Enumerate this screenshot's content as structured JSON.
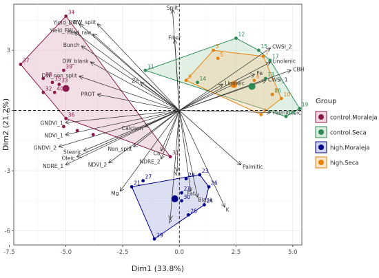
{
  "chart_data": {
    "type": "scatter",
    "title": "",
    "xlabel": "Dim1 (33.8%)",
    "ylabel": "Dim2 (21.2%)",
    "xlim": [
      -7.3,
      5.4
    ],
    "ylim": [
      -6.7,
      5.3
    ],
    "x_ticks": [
      -7.5,
      -5.0,
      -2.5,
      0.0,
      2.5,
      5.0
    ],
    "x_tick_labels": [
      "-7.5",
      "-5.0",
      "-2.5",
      "0.0",
      "2.5",
      "5.0"
    ],
    "y_ticks": [
      -6,
      -3,
      0,
      3
    ],
    "y_tick_labels": [
      "-6",
      "-3",
      "0",
      "3"
    ],
    "grid": true,
    "legend": {
      "title": "Group",
      "placement": "right"
    },
    "series": [
      {
        "name": "control.Moraleja",
        "color": "#8b1a4a",
        "fill": "#d9a3b8",
        "points": [
          {
            "id": "34",
            "x": -5.0,
            "y": 4.7
          },
          {
            "id": "37",
            "x": -7.0,
            "y": 2.3
          },
          {
            "id": "39",
            "x": -5.1,
            "y": 2.0
          },
          {
            "id": "38",
            "x": -6.0,
            "y": 1.6
          },
          {
            "id": "35",
            "x": -5.6,
            "y": 1.4
          },
          {
            "id": "40",
            "x": -5.5,
            "y": 0.9
          },
          {
            "id": "33",
            "x": -5.3,
            "y": 1.3
          },
          {
            "id": "32",
            "x": -6.0,
            "y": 0.9
          },
          {
            "id": "36",
            "x": -5.0,
            "y": -0.4
          },
          {
            "id": "31",
            "x": -0.4,
            "y": -2.3
          },
          {
            "id": "",
            "x": -4.5,
            "y": -1.0
          },
          {
            "id": "",
            "x": -3.8,
            "y": -1.2
          },
          {
            "id": "",
            "x": -5.1,
            "y": -0.8
          }
        ],
        "centroid": {
          "x": -5.0,
          "y": 1.1
        },
        "hull_order": [
          "34",
          "37",
          "36",
          "31"
        ]
      },
      {
        "name": "control.Seca",
        "color": "#2e8b57",
        "fill": "#a8d5b5",
        "points": [
          {
            "id": "12",
            "x": 2.5,
            "y": 3.6
          },
          {
            "id": "15",
            "x": 3.5,
            "y": 3.0
          },
          {
            "id": "17",
            "x": 4.0,
            "y": 2.5
          },
          {
            "id": "11",
            "x": -1.5,
            "y": 2.0
          },
          {
            "id": "13",
            "x": 3.8,
            "y": 1.6
          },
          {
            "id": "16",
            "x": 4.1,
            "y": 0.8
          },
          {
            "id": "19",
            "x": 5.3,
            "y": 0.1
          },
          {
            "id": "18",
            "x": 4.7,
            "y": -0.3
          },
          {
            "id": "14",
            "x": 0.8,
            "y": 1.4
          }
        ],
        "centroid": {
          "x": 3.2,
          "y": 1.2
        },
        "hull_order": [
          "12",
          "15",
          "17",
          "19",
          "18",
          "11"
        ]
      },
      {
        "name": "high.Moraleja",
        "color": "#00008b",
        "fill": "#9aa0d6",
        "points": [
          {
            "id": "21",
            "x": -2.1,
            "y": -3.8
          },
          {
            "id": "27",
            "x": -1.6,
            "y": -3.5
          },
          {
            "id": "23",
            "x": 0.9,
            "y": -3.2
          },
          {
            "id": "28",
            "x": 0.3,
            "y": -3.4
          },
          {
            "id": "22",
            "x": 0.1,
            "y": -4.1
          },
          {
            "id": "26",
            "x": 1.3,
            "y": -3.8
          },
          {
            "id": "30",
            "x": 0.1,
            "y": -4.5
          },
          {
            "id": "24",
            "x": 1.1,
            "y": -4.7
          },
          {
            "id": "25",
            "x": 0.4,
            "y": -5.2
          },
          {
            "id": "29",
            "x": -1.1,
            "y": -6.4
          }
        ],
        "centroid": {
          "x": -0.2,
          "y": -4.4
        },
        "hull_order": [
          "21",
          "23",
          "26",
          "24",
          "29"
        ]
      },
      {
        "name": "high.Seca",
        "color": "#e8820c",
        "fill": "#f5c78a",
        "points": [
          {
            "id": "3",
            "x": 1.5,
            "y": 3.0
          },
          {
            "id": "5",
            "x": 1.7,
            "y": 2.6
          },
          {
            "id": "1",
            "x": 3.7,
            "y": 2.7
          },
          {
            "id": "6",
            "x": 3.3,
            "y": 1.5
          },
          {
            "id": "9",
            "x": 0.3,
            "y": 1.5
          },
          {
            "id": "8",
            "x": 4.1,
            "y": 0.8
          },
          {
            "id": "10",
            "x": 4.5,
            "y": 0.6
          },
          {
            "id": "4",
            "x": 3.6,
            "y": -0.2
          }
        ],
        "centroid": {
          "x": 2.4,
          "y": 1.3
        },
        "hull_order": [
          "3",
          "1",
          "10",
          "4",
          "9"
        ]
      }
    ],
    "variables": [
      {
        "name": "Split",
        "x": -0.3,
        "y": 5.0
      },
      {
        "name": "Fiber",
        "x": -0.2,
        "y": 3.5
      },
      {
        "name": "CWSI_2",
        "x": 4.0,
        "y": 3.1
      },
      {
        "name": "Linolenic",
        "x": 4.0,
        "y": 2.4
      },
      {
        "name": "CBH",
        "x": 4.9,
        "y": 2.0
      },
      {
        "name": "Fe",
        "x": 3.3,
        "y": 1.8
      },
      {
        "name": "CWSI_1",
        "x": 3.8,
        "y": 1.5
      },
      {
        "name": "Palmitoleic",
        "x": 4.0,
        "y": -0.1
      },
      {
        "name": "Linoleic",
        "x": 1.9,
        "y": 1.3
      },
      {
        "name": "Zn",
        "x": -1.7,
        "y": 1.4
      },
      {
        "name": "Yield_DW",
        "x": -4.4,
        "y": 4.3
      },
      {
        "name": "DW_split",
        "x": -3.6,
        "y": 4.3
      },
      {
        "name": "Yield_FW",
        "x": -4.6,
        "y": 3.9
      },
      {
        "name": "Yield_raw",
        "x": -3.8,
        "y": 3.8
      },
      {
        "name": "Bunch",
        "x": -4.3,
        "y": 3.2
      },
      {
        "name": "DW_blank",
        "x": -3.9,
        "y": 2.4
      },
      {
        "name": "DW_non_split",
        "x": -4.4,
        "y": 1.7
      },
      {
        "name": "PROT",
        "x": -3.6,
        "y": 0.8
      },
      {
        "name": "Calcium",
        "x": -1.5,
        "y": -0.8
      },
      {
        "name": "Non_split",
        "x": -2.0,
        "y": -1.8
      },
      {
        "name": "Ca",
        "x": -0.8,
        "y": -2.0
      },
      {
        "name": "NDRE_2",
        "x": -0.8,
        "y": -2.4
      },
      {
        "name": "GNDVI_1",
        "x": -5.0,
        "y": -0.6
      },
      {
        "name": "NDVI_1",
        "x": -5.0,
        "y": -1.2
      },
      {
        "name": "GNDVI_2",
        "x": -5.3,
        "y": -1.8
      },
      {
        "name": "Stearic",
        "x": -4.2,
        "y": -2.0
      },
      {
        "name": "Oleic",
        "x": -4.5,
        "y": -2.3
      },
      {
        "name": "NDRE_1",
        "x": -5.0,
        "y": -2.7
      },
      {
        "name": "NDVI_2",
        "x": -3.1,
        "y": -2.6
      },
      {
        "name": "Palmitic",
        "x": 2.7,
        "y": -2.7
      },
      {
        "name": "Mg",
        "x": -2.6,
        "y": -4.0
      },
      {
        "name": "Na",
        "x": -0.1,
        "y": -3.0
      },
      {
        "name": "Fat",
        "x": 0.5,
        "y": -4.0
      },
      {
        "name": "Blank",
        "x": 0.8,
        "y": -4.3
      },
      {
        "name": "P",
        "x": -0.4,
        "y": -5.4
      },
      {
        "name": "K",
        "x": 2.0,
        "y": -4.8
      }
    ]
  }
}
